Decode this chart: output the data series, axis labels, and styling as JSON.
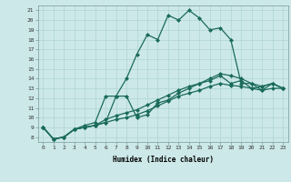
{
  "title": "",
  "xlabel": "Humidex (Indice chaleur)",
  "bg_color": "#cce8e8",
  "grid_color": "#b0d4d4",
  "line_color": "#1a6b5a",
  "marker": "D",
  "marker_size": 2,
  "line_width": 0.9,
  "xlim": [
    -0.5,
    23.5
  ],
  "ylim": [
    7.5,
    21.5
  ],
  "xticks": [
    0,
    1,
    2,
    3,
    4,
    5,
    6,
    7,
    8,
    9,
    10,
    11,
    12,
    13,
    14,
    15,
    16,
    17,
    18,
    19,
    20,
    21,
    22,
    23
  ],
  "yticks": [
    8,
    9,
    10,
    11,
    12,
    13,
    14,
    15,
    16,
    17,
    18,
    19,
    20,
    21
  ],
  "series": [
    [
      9.0,
      7.8,
      8.0,
      8.8,
      9.0,
      9.2,
      9.5,
      9.8,
      10.0,
      10.3,
      10.7,
      11.2,
      11.7,
      12.2,
      12.5,
      12.8,
      13.2,
      13.5,
      13.3,
      13.2,
      13.0,
      12.8,
      13.0,
      13.0
    ],
    [
      9.0,
      7.8,
      8.0,
      8.8,
      9.0,
      9.2,
      9.8,
      10.2,
      10.5,
      10.8,
      11.3,
      11.8,
      12.3,
      12.8,
      13.2,
      13.5,
      14.0,
      14.5,
      14.3,
      14.0,
      13.5,
      13.2,
      13.5,
      13.0
    ],
    [
      9.0,
      7.8,
      8.0,
      8.8,
      9.2,
      9.5,
      12.2,
      12.2,
      14.0,
      16.5,
      18.5,
      18.0,
      20.5,
      20.0,
      21.0,
      20.2,
      19.0,
      19.2,
      18.0,
      13.5,
      13.5,
      12.8,
      13.5,
      13.0
    ],
    [
      9.0,
      7.8,
      8.0,
      8.8,
      9.0,
      9.2,
      9.5,
      12.2,
      12.2,
      10.0,
      10.3,
      11.5,
      11.8,
      12.5,
      13.0,
      13.5,
      13.8,
      14.3,
      13.5,
      13.8,
      13.0,
      13.2,
      13.5,
      13.0
    ]
  ]
}
